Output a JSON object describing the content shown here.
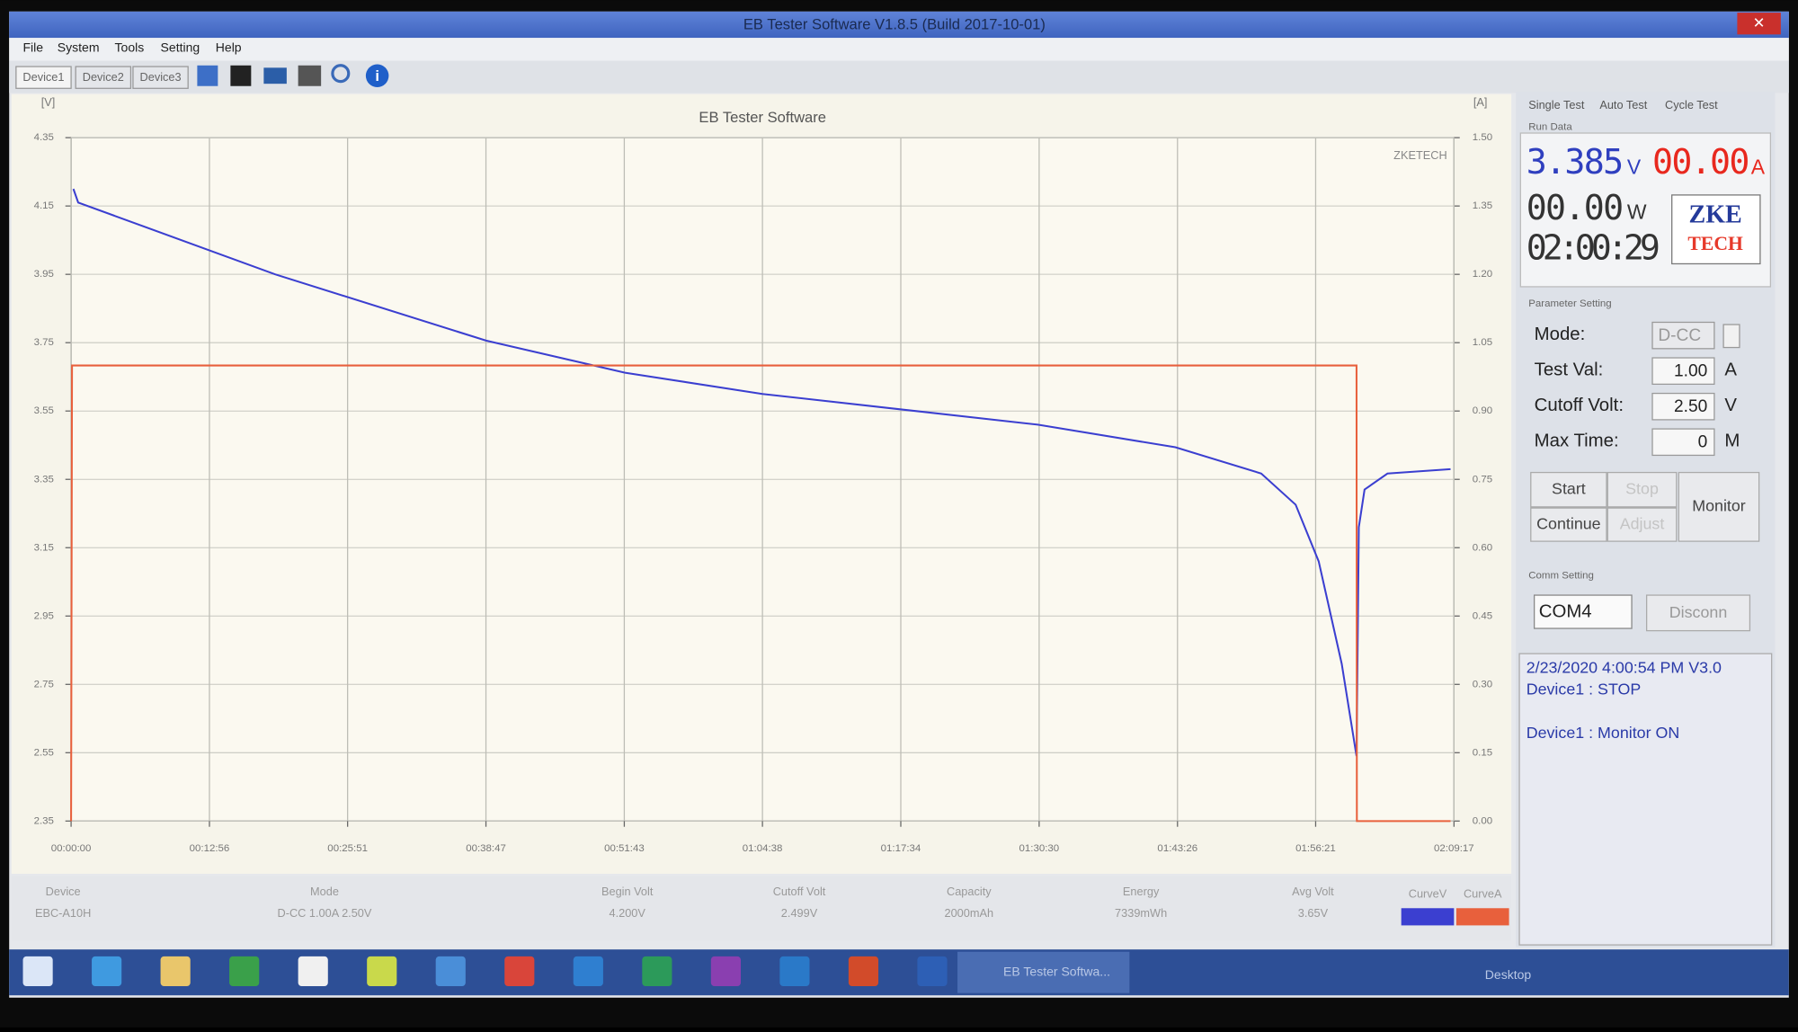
{
  "window": {
    "title": "EB Tester Software V1.8.5 (Build 2017-10-01)"
  },
  "menu": [
    "File",
    "System",
    "Tools",
    "Setting",
    "Help"
  ],
  "device_tabs": [
    "Device1",
    "Device2",
    "Device3"
  ],
  "chart_data": {
    "type": "line",
    "title": "EB Tester Software",
    "ylabel": "[V]",
    "y2label": "[A]",
    "watermark": "ZKETECH",
    "grid": true,
    "xlim": [
      0,
      7757
    ],
    "xticks": [
      {
        "value": 0,
        "label": "00:00:00"
      },
      {
        "value": 776,
        "label": "00:12:56"
      },
      {
        "value": 1551,
        "label": "00:25:51"
      },
      {
        "value": 2327,
        "label": "00:38:47"
      },
      {
        "value": 3103,
        "label": "00:51:43"
      },
      {
        "value": 3878,
        "label": "01:04:38"
      },
      {
        "value": 4654,
        "label": "01:17:34"
      },
      {
        "value": 5430,
        "label": "01:30:30"
      },
      {
        "value": 6206,
        "label": "01:43:26"
      },
      {
        "value": 6981,
        "label": "01:56:21"
      },
      {
        "value": 7757,
        "label": "02:09:17"
      }
    ],
    "ylim": [
      2.35,
      4.35
    ],
    "yticks": [
      4.35,
      4.15,
      3.95,
      3.75,
      3.55,
      3.35,
      3.15,
      2.95,
      2.75,
      2.55,
      2.35
    ],
    "y2lim": [
      0,
      1.5
    ],
    "y2ticks": [
      {
        "value": 1.5,
        "label": "1.50"
      },
      {
        "value": 1.35,
        "label": "1.35"
      },
      {
        "value": 1.2,
        "label": "1.20"
      },
      {
        "value": 1.05,
        "label": "1.05"
      },
      {
        "value": 0.9,
        "label": "0.90"
      },
      {
        "value": 0.75,
        "label": "0.75"
      },
      {
        "value": 0.6,
        "label": "0.60"
      },
      {
        "value": 0.45,
        "label": "0.45"
      },
      {
        "value": 0.3,
        "label": "0.30"
      },
      {
        "value": 0.15,
        "label": "0.15"
      },
      {
        "value": 0,
        "label": "0.00"
      }
    ],
    "series": [
      {
        "name": "CurveV",
        "color": "#3b3fd0",
        "x": [
          13,
          40,
          1145,
          2328,
          3107,
          3878,
          4650,
          5422,
          6194,
          6676,
          6869,
          6998,
          7127,
          7210,
          7223,
          7255,
          7384,
          7738
        ],
        "values": [
          4.2,
          4.16,
          3.95,
          3.756,
          3.662,
          3.6,
          3.555,
          3.51,
          3.444,
          3.367,
          3.276,
          3.11,
          2.81,
          2.54,
          3.21,
          3.32,
          3.367,
          3.38
        ]
      },
      {
        "name": "CurveA",
        "color": "#e8603c",
        "axis": "y2",
        "x": [
          0,
          5,
          7210,
          7212,
          7738
        ],
        "values": [
          0,
          1.0,
          1.0,
          0,
          0
        ]
      }
    ]
  },
  "side_panel": {
    "tabs": [
      "Single Test",
      "Auto Test",
      "Cycle Test"
    ],
    "run_data_label": "Run Data",
    "voltage": "3.385",
    "voltage_unit": "V",
    "current": "00.00",
    "current_unit": "A",
    "power": "00.00",
    "power_unit": "W",
    "time": "02:00:29",
    "logo": [
      "ZKE",
      "TECH"
    ],
    "parameter_label": "Parameter Setting",
    "params": [
      {
        "label": "Mode:",
        "value": "D-CC",
        "unit": ""
      },
      {
        "label": "Test Val:",
        "value": "1.00",
        "unit": "A"
      },
      {
        "label": "Cutoff Volt:",
        "value": "2.50",
        "unit": "V"
      },
      {
        "label": "Max Time:",
        "value": "0",
        "unit": "M"
      }
    ],
    "buttons": [
      "Start",
      "Stop",
      "Monitor",
      "Continue",
      "Adjust"
    ],
    "comm_label": "Comm Setting",
    "port": "COM4",
    "disconnect": "Disconn",
    "log": [
      "2/23/2020 4:00:54 PM  V3.0",
      "Device1 : STOP",
      "Device1 : Monitor ON"
    ]
  },
  "results_table": {
    "headers": [
      "Device",
      "Mode",
      "Begin Volt",
      "Cutoff Volt",
      "Capacity",
      "Energy",
      "Avg Volt"
    ],
    "row": [
      "EBC-A10H",
      "D-CC 1.00A 2.50V",
      "4.200V",
      "2.499V",
      "2000mAh",
      "7339mWh",
      "3.65V"
    ]
  },
  "taskbar": {
    "active": "EB Tester Softwa...",
    "desktop": "Desktop"
  }
}
